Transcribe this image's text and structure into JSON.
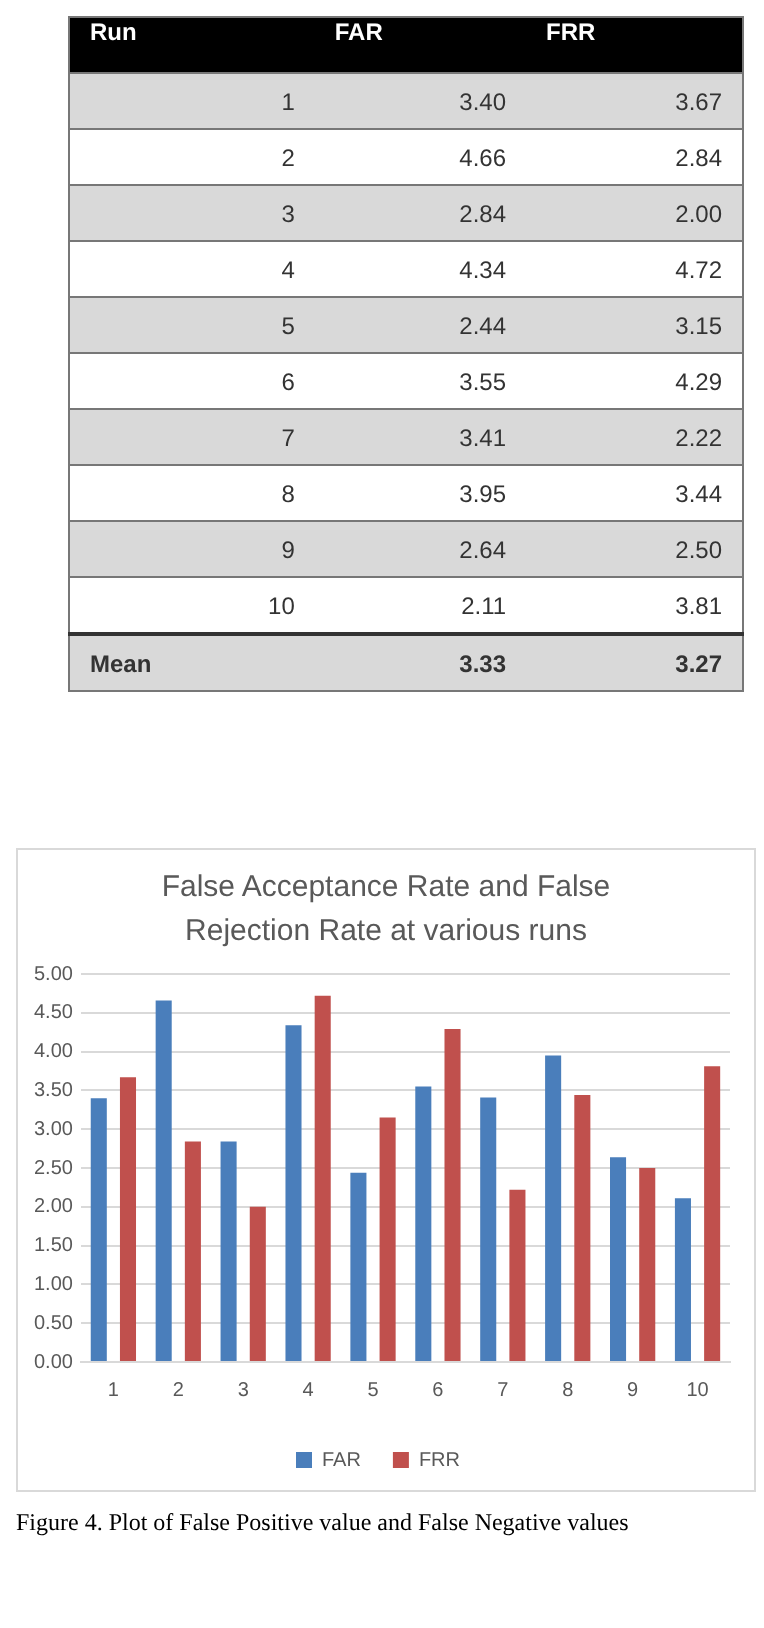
{
  "chart_data": {
    "type": "bar",
    "title": "False Acceptance Rate and False Rejection Rate at various runs",
    "categories": [
      "1",
      "2",
      "3",
      "4",
      "5",
      "6",
      "7",
      "8",
      "9",
      "10"
    ],
    "series": [
      {
        "name": "FAR",
        "color": "#4a7ebb",
        "values": [
          3.4,
          4.66,
          2.84,
          4.34,
          2.44,
          3.55,
          3.41,
          3.95,
          2.64,
          2.11
        ]
      },
      {
        "name": "FRR",
        "color": "#c0504d",
        "values": [
          3.67,
          2.84,
          2.0,
          4.72,
          3.15,
          4.29,
          2.22,
          3.44,
          2.5,
          3.81
        ]
      }
    ],
    "ylim": [
      0,
      5
    ],
    "yticks": [
      {
        "value": 0,
        "label": "0.00"
      },
      {
        "value": 0.5,
        "label": "0.50"
      },
      {
        "value": 1,
        "label": "1.00"
      },
      {
        "value": 1.5,
        "label": "1.50"
      },
      {
        "value": 2,
        "label": "2.00"
      },
      {
        "value": 2.5,
        "label": "2.50"
      },
      {
        "value": 3,
        "label": "3.00"
      },
      {
        "value": 3.5,
        "label": "3.50"
      },
      {
        "value": 4,
        "label": "4.00"
      },
      {
        "value": 4.5,
        "label": "4.50"
      },
      {
        "value": 5,
        "label": "5.00"
      }
    ],
    "grid": "y",
    "legend": "bottom",
    "annotations": [
      "Run",
      "Mean",
      "3.33",
      "3.27",
      "Figure 4. Plot of False Positive value and False Negative values",
      "3.40",
      "3.67",
      "4.66",
      "2.84",
      "2.84",
      "2.00",
      "4.34",
      "4.72",
      "2.44",
      "3.15",
      "3.55",
      "4.29",
      "3.41",
      "2.22",
      "3.95",
      "3.44",
      "2.64",
      "2.50",
      "2.11",
      "3.81"
    ]
  }
}
